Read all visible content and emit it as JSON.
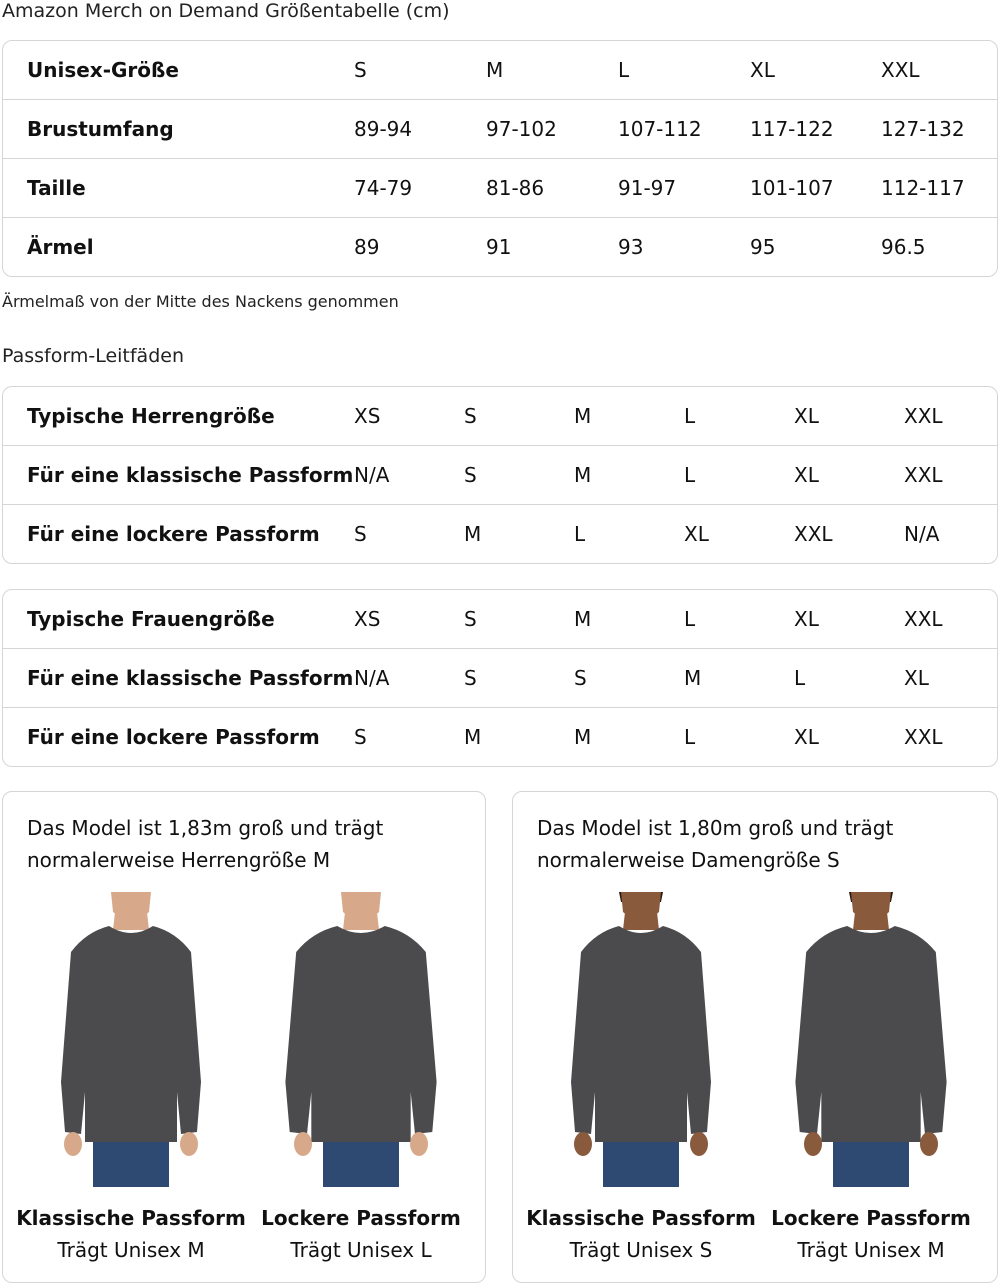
{
  "size_chart": {
    "title": "Amazon Merch on Demand Größentabelle (cm)",
    "rows": [
      [
        "Unisex-Größe",
        "S",
        "M",
        "L",
        "XL",
        "XXL"
      ],
      [
        "Brustumfang",
        "89-94",
        "97-102",
        "107-112",
        "117-122",
        "127-132"
      ],
      [
        "Taille",
        "74-79",
        "81-86",
        "91-97",
        "101-107",
        "112-117"
      ],
      [
        "Ärmel",
        "89",
        "91",
        "93",
        "95",
        "96.5"
      ]
    ],
    "note": "Ärmelmaß von der Mitte des Nackens genommen"
  },
  "fit_guides": {
    "title": "Passform-Leitfäden",
    "men": [
      [
        "Typische Herrengröße",
        "XS",
        "S",
        "M",
        "L",
        "XL",
        "XXL"
      ],
      [
        "Für eine klassische Passform",
        "N/A",
        "S",
        "M",
        "L",
        "XL",
        "XXL"
      ],
      [
        "Für eine lockere Passform",
        "S",
        "M",
        "L",
        "XL",
        "XXL",
        "N/A"
      ]
    ],
    "women": [
      [
        "Typische Frauengröße",
        "XS",
        "S",
        "M",
        "L",
        "XL",
        "XXL"
      ],
      [
        "Für eine klassische Passform",
        "N/A",
        "S",
        "S",
        "M",
        "L",
        "XL"
      ],
      [
        "Für eine lockere Passform",
        "S",
        "M",
        "M",
        "L",
        "XL",
        "XXL"
      ]
    ]
  },
  "models": [
    {
      "text_line1": "Das Model ist 1,83m groß und trägt",
      "text_line2": "normalerweise Herrengröße M",
      "fits": [
        {
          "title": "Klassische Passform",
          "sub": "Trägt Unisex M"
        },
        {
          "title": "Lockere Passform",
          "sub": "Trägt Unisex L"
        }
      ]
    },
    {
      "text_line1": "Das Model ist 1,80m groß und trägt",
      "text_line2": "normalerweise Damengröße S",
      "fits": [
        {
          "title": "Klassische Passform",
          "sub": "Trägt Unisex S"
        },
        {
          "title": "Lockere Passform",
          "sub": "Trägt Unisex M"
        }
      ]
    }
  ],
  "colors": {
    "sweatshirt": "#4b4b4e",
    "jeans": "#2f4a72",
    "border": "#d5d5d5"
  }
}
